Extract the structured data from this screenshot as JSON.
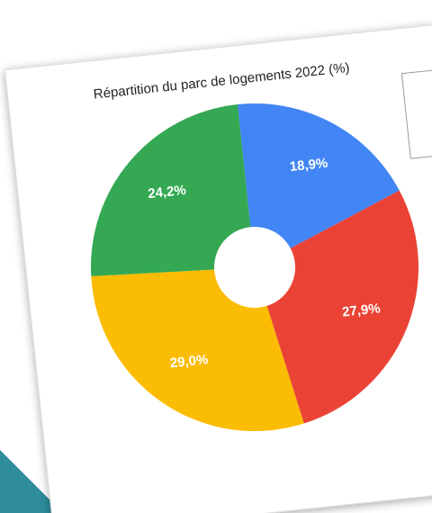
{
  "chart_data": {
    "type": "donut",
    "title": "Répartition du parc de logements 2022 (%)",
    "values": [
      18.9,
      27.9,
      29,
      24.2
    ],
    "value_labels": [
      "18,9%",
      "27,9%",
      "29,0%",
      "24,2%"
    ],
    "colors": [
      "#4285f4",
      "#ea4335",
      "#fbbc04",
      "#34a853"
    ]
  }
}
